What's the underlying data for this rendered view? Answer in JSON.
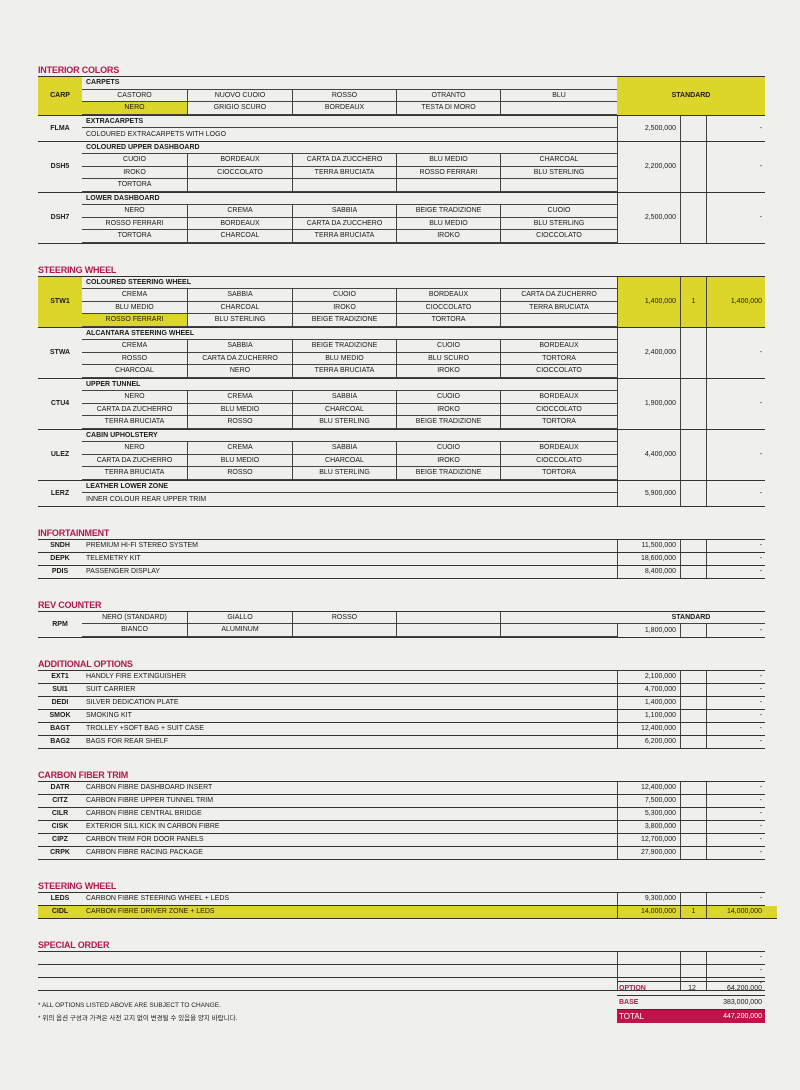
{
  "sections": [
    {
      "title": "INTERIOR COLORS",
      "items": [
        {
          "code": "CARP",
          "highlight_code": true,
          "title": "CARPETS",
          "colors": [
            [
              "CASTORO",
              "NUOVO CUOIO",
              "ROSSO",
              "OTRANTO",
              "BLU"
            ],
            [
              "NERO",
              "GRIGIO SCURO",
              "BORDEAUX",
              "TESTA DI MORO",
              ""
            ]
          ],
          "selected_color": [
            1,
            0
          ],
          "standard_label": "STANDARD",
          "highlight_price": true
        },
        {
          "code": "FLMA",
          "title": "EXTRACARPETS",
          "sub": "COLOURED EXTRACARPETS WITH LOGO",
          "price": "2,500,000",
          "qty": "",
          "amount": "-"
        },
        {
          "code": "DSH5",
          "title": "COLOURED UPPER DASHBOARD",
          "colors": [
            [
              "CUOIO",
              "BORDEAUX",
              "CARTA DA ZUCCHERO",
              "BLU MEDIO",
              "CHARCOAL"
            ],
            [
              "IROKO",
              "CIOCCOLATO",
              "TERRA BRUCIATA",
              "ROSSO FERRARI",
              "BLU STERLING"
            ],
            [
              "TORTORA",
              "",
              "",
              "",
              ""
            ]
          ],
          "price": "2,200,000",
          "qty": "",
          "amount": "-"
        },
        {
          "code": "DSH7",
          "title": "LOWER DASHBOARD",
          "colors": [
            [
              "NERO",
              "CREMA",
              "SABBIA",
              "BEIGE TRADIZIONE",
              "CUOIO"
            ],
            [
              "ROSSO FERRARI",
              "BORDEAUX",
              "CARTA DA ZUCCHERO",
              "BLU MEDIO",
              "BLU STERLING"
            ],
            [
              "TORTORA",
              "CHARCOAL",
              "TERRA BRUCIATA",
              "IROKO",
              "CIOCCOLATO"
            ]
          ],
          "price": "2,500,000",
          "qty": "",
          "amount": "-"
        }
      ]
    },
    {
      "title": "STEERING WHEEL",
      "items": [
        {
          "code": "STW1",
          "highlight_code": true,
          "title": "COLOURED STEERING WHEEL",
          "colors": [
            [
              "CREMA",
              "SABBIA",
              "CUOIO",
              "BORDEAUX",
              "CARTA DA ZUCHERRO"
            ],
            [
              "BLU MEDIO",
              "CHARCOAL",
              "IROKO",
              "CIOCCOLATO",
              "TERRA BRUCIATA"
            ],
            [
              "ROSSO FERRARI",
              "BLU STERLING",
              "BEIGE TRADIZIONE",
              "TORTORA",
              ""
            ]
          ],
          "selected_color": [
            2,
            0
          ],
          "price": "1,400,000",
          "qty": "1",
          "amount": "1,400,000",
          "highlight_price": true
        },
        {
          "code": "STWA",
          "title": "ALCANTARA STEERING WHEEL",
          "colors": [
            [
              "CREMA",
              "SABBIA",
              "BEIGE TRADIZIONE",
              "CUOIO",
              "BORDEAUX"
            ],
            [
              "ROSSO",
              "CARTA DA ZUCHERRO",
              "BLU MEDIO",
              "BLU SCURO",
              "TORTORA"
            ],
            [
              "CHARCOAL",
              "NERO",
              "TERRA BRUCIATA",
              "IROKO",
              "CIOCCOLATO"
            ]
          ],
          "price": "2,400,000",
          "qty": "",
          "amount": "-"
        },
        {
          "code": "CTU4",
          "title": "UPPER TUNNEL",
          "colors": [
            [
              "NERO",
              "CREMA",
              "SABBIA",
              "CUOIO",
              "BORDEAUX"
            ],
            [
              "CARTA DA ZUCHERRO",
              "BLU MEDIO",
              "CHARCOAL",
              "IROKO",
              "CIOCCOLATO"
            ],
            [
              "TERRA BRUCIATA",
              "ROSSO",
              "BLU STERLING",
              "BEIGE TRADIZIONE",
              "TORTORA"
            ]
          ],
          "price": "1,900,000",
          "qty": "",
          "amount": "-"
        },
        {
          "code": "ULEZ",
          "title": "CABIN UPHOLSTERY",
          "colors": [
            [
              "NERO",
              "CREMA",
              "SABBIA",
              "CUOIO",
              "BORDEAUX"
            ],
            [
              "CARTA DA ZUCHERRO",
              "BLU MEDIO",
              "CHARCOAL",
              "IROKO",
              "CIOCCOLATO"
            ],
            [
              "TERRA BRUCIATA",
              "ROSSO",
              "BLU STERLING",
              "BEIGE TRADIZIONE",
              "TORTORA"
            ]
          ],
          "price": "4,400,000",
          "qty": "",
          "amount": "-"
        },
        {
          "code": "LERZ",
          "title": "LEATHER LOWER ZONE",
          "sub": "INNER COLOUR REAR UPPER TRIM",
          "price": "5,900,000",
          "qty": "",
          "amount": "-"
        }
      ]
    },
    {
      "title": "INFORTAINMENT",
      "rows": [
        {
          "code": "SNDH",
          "name": "PREMIUM HI-FI STEREO SYSTEM",
          "price": "11,500,000",
          "qty": "",
          "amount": "-"
        },
        {
          "code": "DEPK",
          "name": "TELEMETRY KIT",
          "price": "18,600,000",
          "qty": "",
          "amount": "-"
        },
        {
          "code": "PDIS",
          "name": "PASSENGER DISPLAY",
          "price": "8,400,000",
          "qty": "",
          "amount": "-"
        }
      ]
    },
    {
      "title": "REV COUNTER",
      "items": [
        {
          "code": "RPM",
          "colors": [
            [
              "NERO (STANDARD)",
              "GIALLO",
              "ROSSO",
              "",
              ""
            ],
            [
              "BIANCO",
              "ALUMINUM",
              "",
              "",
              ""
            ]
          ],
          "standard_label": "STANDARD",
          "price": "1,800,000",
          "qty": "",
          "amount": "-"
        }
      ]
    },
    {
      "title": "ADDITIONAL OPTIONS",
      "rows": [
        {
          "code": "EXT1",
          "name": "HANDLY FIRE EXTINGUISHER",
          "price": "2,100,000",
          "qty": "",
          "amount": "-"
        },
        {
          "code": "SUI1",
          "name": "SUIT CARRIER",
          "price": "4,700,000",
          "qty": "",
          "amount": "-"
        },
        {
          "code": "DEDI",
          "name": "SILVER DEDICATION PLATE",
          "price": "1,400,000",
          "qty": "",
          "amount": "-"
        },
        {
          "code": "SMOK",
          "name": "SMOKING KIT",
          "price": "1,100,000",
          "qty": "",
          "amount": "-"
        },
        {
          "code": "BAGT",
          "name": "TROLLEY +SOFT BAG + SUIT CASE",
          "price": "12,400,000",
          "qty": "",
          "amount": "-"
        },
        {
          "code": "BAG2",
          "name": "BAGS FOR REAR SHELF",
          "price": "6,200,000",
          "qty": "",
          "amount": "-"
        }
      ]
    },
    {
      "title": "CARBON FIBER TRIM",
      "rows": [
        {
          "code": "DATR",
          "name": "CARBON FIBRE DASHBOARD INSERT",
          "price": "12,400,000",
          "qty": "",
          "amount": "-"
        },
        {
          "code": "CITZ",
          "name": "CARBON FIBRE UPPER TUNNEL TRIM",
          "price": "7,500,000",
          "qty": "",
          "amount": "-"
        },
        {
          "code": "CILR",
          "name": "CARBON FIBRE CENTRAL BRIDGE",
          "price": "5,300,000",
          "qty": "",
          "amount": "-"
        },
        {
          "code": "CISK",
          "name": "EXTERIOR SILL KICK IN CARBON FIBRE",
          "price": "3,800,000",
          "qty": "",
          "amount": "-"
        },
        {
          "code": "CIPZ",
          "name": "CARBON TRIM FOR DOOR PANELS",
          "price": "12,700,000",
          "qty": "",
          "amount": "-"
        },
        {
          "code": "CRPK",
          "name": "CARBON FIBRE RACING PACKAGE",
          "price": "27,900,000",
          "qty": "",
          "amount": "-"
        }
      ]
    },
    {
      "title": "STEERING WHEEL",
      "rows": [
        {
          "code": "LEDS",
          "name": "CARBON FIBRE STEERING WHEEL + LEDS",
          "price": "9,300,000",
          "qty": "",
          "amount": "-"
        },
        {
          "code": "CIDL",
          "name": "CARBON FIBRE DRIVER ZONE + LEDS",
          "price": "14,000,000",
          "qty": "1",
          "amount": "14,000,000",
          "highlight": true
        }
      ]
    },
    {
      "title": "SPECIAL ORDER",
      "rows": [
        {
          "code": "",
          "name": "",
          "price": "",
          "qty": "",
          "amount": "-"
        },
        {
          "code": "",
          "name": "",
          "price": "",
          "qty": "",
          "amount": "-"
        },
        {
          "code": "",
          "name": "",
          "price": "",
          "qty": "",
          "amount": "-"
        }
      ]
    }
  ],
  "notes": [
    "* ALL OPTIONS LISTED ABOVE ARE SUBJECT TO CHANGE.",
    "* 위의 옵션 구성과 가격은 사전 고지 없이 변경될 수 있음을 양지 바랍니다."
  ],
  "totals": {
    "option": {
      "label": "OPTION",
      "count": "12",
      "amount": "64,200,000"
    },
    "base": {
      "label": "BASE",
      "amount": "383,000,000"
    },
    "total": {
      "label": "TOTAL",
      "amount": "447,200,000"
    }
  },
  "colors": {
    "section_title": "#b3174f",
    "highlight": "#dcd52a",
    "total_bg": "#c0134a"
  }
}
